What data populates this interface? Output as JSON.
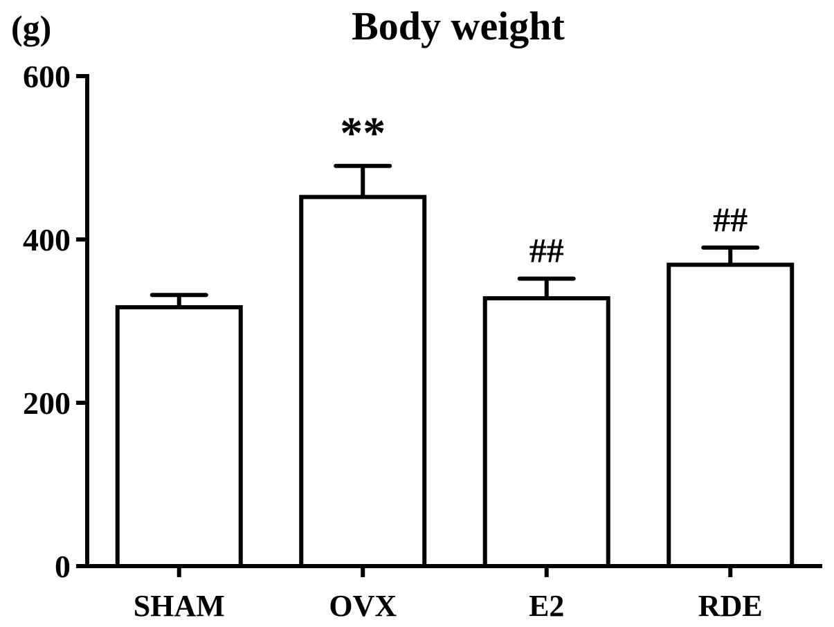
{
  "chart_data": {
    "type": "bar",
    "title": "Body weight",
    "ylabel": "(g)",
    "xlabel": "",
    "categories": [
      "SHAM",
      "OVX",
      "E2",
      "RDE"
    ],
    "values": [
      317,
      452,
      328,
      369
    ],
    "error_upper": [
      332,
      490,
      352,
      390
    ],
    "annotations": [
      "",
      "**",
      "##",
      "##"
    ],
    "yticks": [
      0,
      200,
      400,
      600
    ],
    "ylim": [
      0,
      600
    ],
    "grid": false,
    "legend": "none",
    "colors": {
      "bar_fill": "#ffffff",
      "stroke": "#000000"
    }
  }
}
